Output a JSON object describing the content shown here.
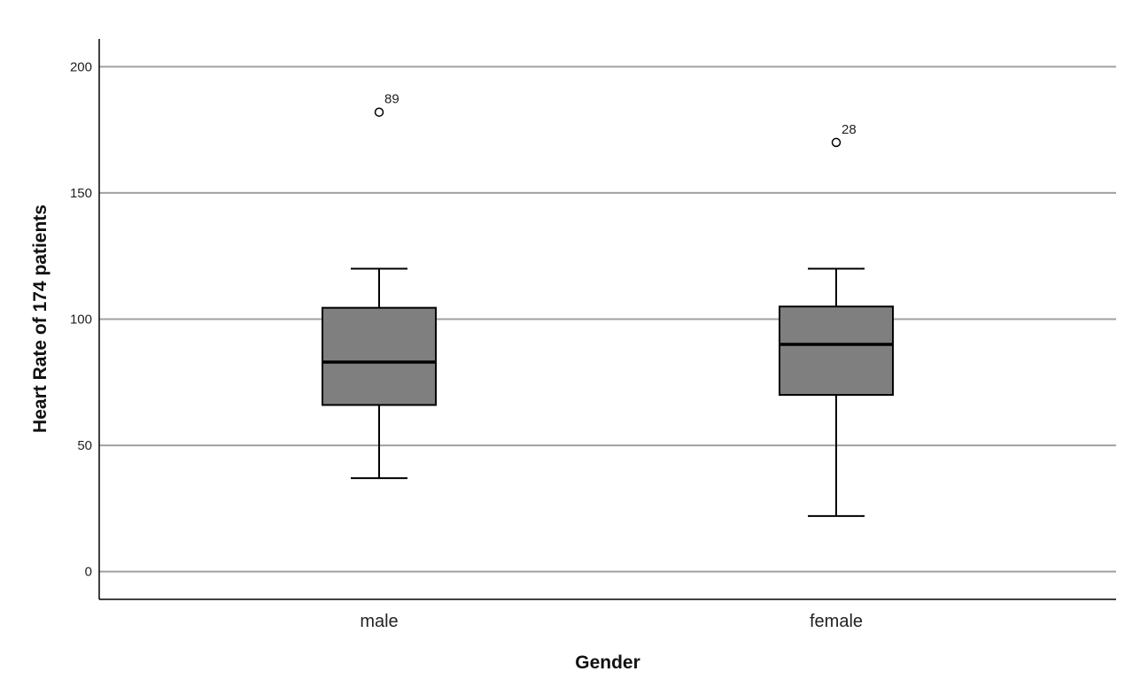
{
  "chart_data": {
    "type": "boxplot",
    "xlabel": "Gender",
    "ylabel": "Heart Rate of 174 patients",
    "ylim": [
      -11,
      211
    ],
    "yticks": [
      0,
      50,
      100,
      150,
      200
    ],
    "grid": true,
    "categories": [
      "male",
      "female"
    ],
    "boxes": [
      {
        "category": "male",
        "whisker_low": 37,
        "q1": 66,
        "median": 83,
        "q3": 104.5,
        "whisker_high": 120,
        "outliers": [
          {
            "value": 182,
            "label": "89"
          }
        ]
      },
      {
        "category": "female",
        "whisker_low": 22,
        "q1": 70,
        "median": 90,
        "q3": 105,
        "whisker_high": 120,
        "outliers": [
          {
            "value": 170,
            "label": "28"
          }
        ]
      }
    ],
    "colors": {
      "box_fill": "#7f7f7f",
      "stroke": "#000000",
      "grid": "#a0a0a0"
    }
  }
}
